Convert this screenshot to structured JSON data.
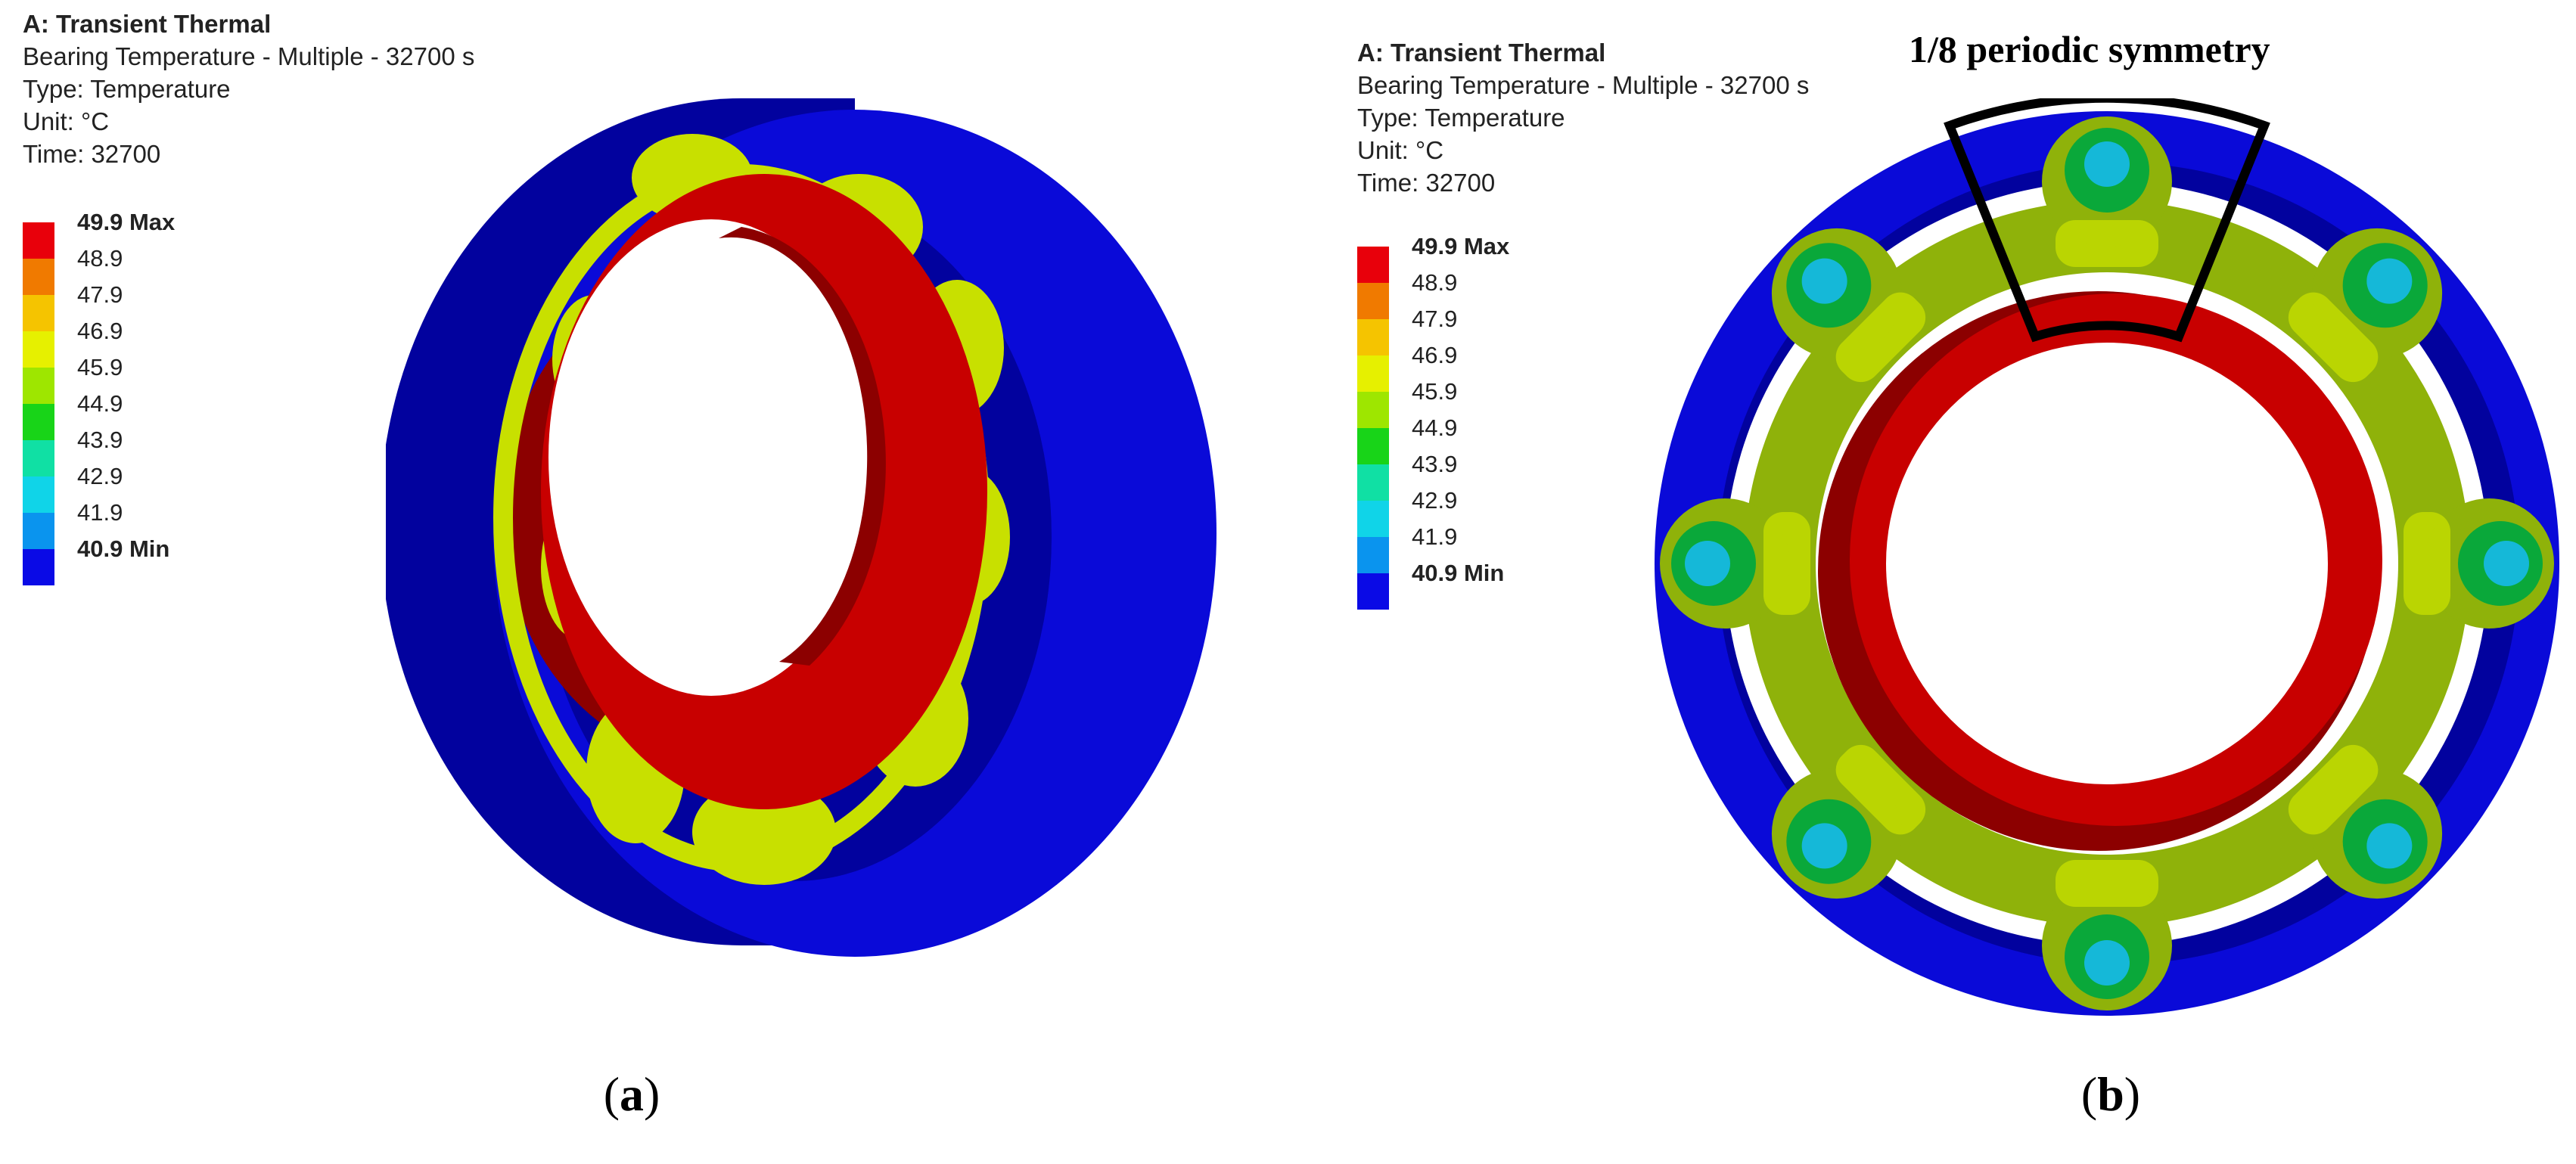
{
  "panels": [
    {
      "id": "a",
      "label": "a",
      "info": {
        "title": "A: Transient Thermal",
        "result": "Bearing Temperature - Multiple - 32700 s",
        "type": "Type: Temperature",
        "unit": "Unit: °C",
        "time": "Time: 32700"
      }
    },
    {
      "id": "b",
      "label": "b",
      "info": {
        "title": "A: Transient Thermal",
        "result": "Bearing Temperature - Multiple - 32700 s",
        "type": "Type: Temperature",
        "unit": "Unit: °C",
        "time": "Time: 32700"
      },
      "annotation": "1/8 periodic symmetry"
    }
  ],
  "legend": {
    "entries": [
      {
        "value": "49.9 Max",
        "color": "#e8000b"
      },
      {
        "value": "48.9",
        "color": "#f07a00"
      },
      {
        "value": "47.9",
        "color": "#f5c400"
      },
      {
        "value": "46.9",
        "color": "#e6f000"
      },
      {
        "value": "45.9",
        "color": "#9ee600"
      },
      {
        "value": "44.9",
        "color": "#18d418"
      },
      {
        "value": "43.9",
        "color": "#10e0a4"
      },
      {
        "value": "42.9",
        "color": "#10d4e8"
      },
      {
        "value": "41.9",
        "color": "#0a94ee"
      },
      {
        "value": "40.9 Min",
        "color": "#0a0ae6"
      }
    ]
  },
  "colors": {
    "outer_ring": "#0a0ad8",
    "outer_ring_side": "#02029e",
    "inner_ring": "#c80000",
    "inner_ring_shade": "#8c0000",
    "cage": "#8fb20a",
    "ball": "#c8e000",
    "ball_contact": "#0aa83a",
    "ball_cool": "#15b8d8"
  }
}
